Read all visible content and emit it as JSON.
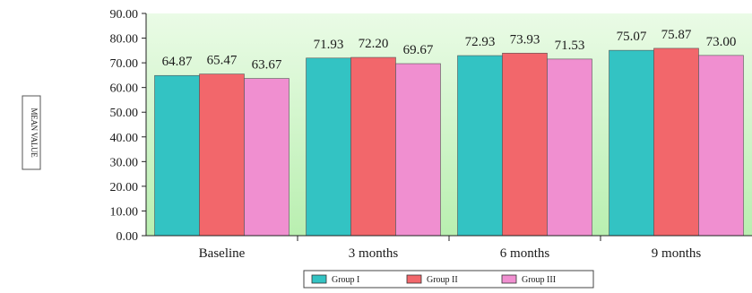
{
  "chart_data": {
    "type": "bar",
    "title": "",
    "xlabel": "",
    "ylabel": "MEAN VALUE",
    "categories": [
      "Baseline",
      "3 months",
      "6 months",
      "9 months"
    ],
    "series": [
      {
        "name": "Group I",
        "values": [
          64.87,
          71.93,
          72.93,
          75.07
        ],
        "labels": [
          "64.87",
          "71.93",
          "72.93",
          "75.07"
        ],
        "color": "#33c3c3"
      },
      {
        "name": "Group II",
        "values": [
          65.47,
          72.2,
          73.93,
          75.87
        ],
        "labels": [
          "65.47",
          "72.20",
          "73.93",
          "75.87"
        ],
        "color": "#f2676b"
      },
      {
        "name": "Group III",
        "values": [
          63.67,
          69.67,
          71.53,
          73.0
        ],
        "labels": [
          "63.67",
          "69.67",
          "71.53",
          "73.00"
        ],
        "color": "#f08fd0"
      }
    ],
    "ylim": [
      0,
      90
    ],
    "yticks": [
      "0.00",
      "10.00",
      "20.00",
      "30.00",
      "40.00",
      "50.00",
      "60.00",
      "70.00",
      "80.00",
      "90.00"
    ],
    "grid": false,
    "legend_position": "bottom",
    "plot_background": [
      "#eafbe6",
      "#b9efb0"
    ]
  }
}
